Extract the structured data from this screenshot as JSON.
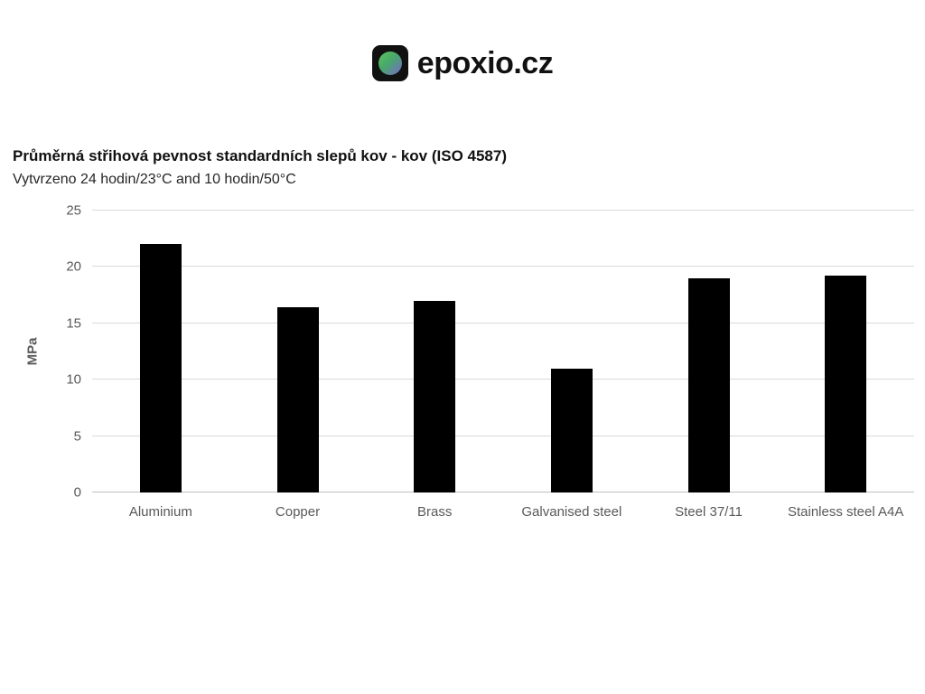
{
  "logo": {
    "text": "epoxio.cz"
  },
  "chart_data": {
    "type": "bar",
    "title": "Průměrná střihová pevnost standardních slepů kov - kov (ISO 4587)",
    "subtitle": "Vytvrzeno 24 hodin/23°C and 10 hodin/50°C",
    "categories": [
      "Aluminium",
      "Copper",
      "Brass",
      "Galvanised steel",
      "Steel 37/11",
      "Stainless steel A4A"
    ],
    "values": [
      22,
      16.4,
      17,
      11,
      19,
      19.2
    ],
    "xlabel": "",
    "ylabel": "MPa",
    "ylim": [
      0,
      25
    ],
    "yticks": [
      0,
      5,
      10,
      15,
      20,
      25
    ],
    "bar_color": "#000000",
    "grid": true,
    "gridline_color": "#d9d9d9",
    "tick_label_color": "#595959",
    "legend": "none"
  }
}
